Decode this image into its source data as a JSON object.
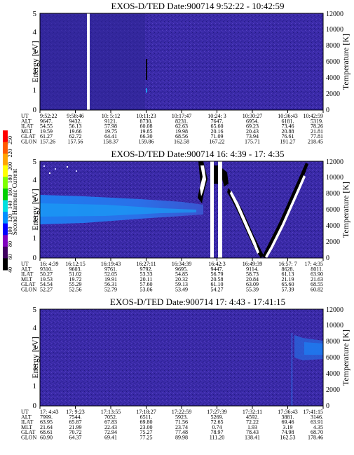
{
  "colors": {
    "background": "#3a2aa8",
    "speckle_dark": "#241a80",
    "speckle_light": "#5540c0",
    "enhancement": "#1e7cf0",
    "gap": "#ffffff"
  },
  "colorbar": {
    "label": "Second Harmonic Current",
    "ticks": [
      "250",
      "220",
      "200",
      "180",
      "160",
      "140",
      "120",
      "100",
      "80",
      "60",
      "40"
    ],
    "colors": [
      "#ff0000",
      "#ff5a00",
      "#ffa500",
      "#ffff00",
      "#7fff00",
      "#00d000",
      "#00e0e0",
      "#0090ff",
      "#0000ff",
      "#8000c0",
      "#400060",
      "#000000"
    ]
  },
  "chart_data": [
    {
      "type": "heatmap",
      "title": "EXOS-D/TED   Date:900714   9:52:22 - 10:42:59",
      "ylabel": "Energy [eV]",
      "y2label": "Temperature [K]",
      "ylim": [
        0,
        5
      ],
      "y2lim": [
        0,
        12000
      ],
      "yticks": [
        "0",
        "1",
        "2",
        "3",
        "4",
        "5"
      ],
      "y2ticks": [
        "0",
        "2000",
        "4000",
        "6000",
        "8000",
        "10000",
        "12000"
      ],
      "orbit_rows": [
        "UT",
        "ALT",
        "ILAT",
        "MLT",
        "GLAT",
        "GLON"
      ],
      "orbit_cols": [
        [
          "9:52:22",
          "9647.",
          "54.55",
          "19.59",
          "61.27",
          "157.26"
        ],
        [
          "9:58:46",
          "9432.",
          "56.13",
          "19.66",
          "62.72",
          "157.56"
        ],
        [
          "10: 5:12",
          "9121.",
          "57.98",
          "19.75",
          "64.41",
          "158.37"
        ],
        [
          "10:11:23",
          "8730.",
          "60.08",
          "19.85",
          "66.30",
          "159.86"
        ],
        [
          "10:17:47",
          "8231.",
          "62.63",
          "19.98",
          "68.56",
          "162.58"
        ],
        [
          "10:24: 3",
          "7647.",
          "65.60",
          "20.16",
          "71.09",
          "167.22"
        ],
        [
          "10:30:27",
          "6954.",
          "69.23",
          "20.43",
          "73.94",
          "175.71"
        ],
        [
          "10:36:43",
          "6181.",
          "73.46",
          "20.88",
          "76.61",
          "191.27"
        ],
        [
          "10:42:59",
          "5319.",
          "78.26",
          "21.81",
          "77.81",
          "218.45"
        ]
      ]
    },
    {
      "type": "heatmap",
      "title": "EXOS-D/TED   Date:900714   16: 4:39 - 17: 4:35",
      "ylabel": "Energy [eV]",
      "y2label": "Temperature [K]",
      "ylim": [
        0,
        5
      ],
      "y2lim": [
        0,
        12000
      ],
      "yticks": [
        "0",
        "1",
        "2",
        "3",
        "4",
        "5"
      ],
      "y2ticks": [
        "0",
        "2000",
        "4000",
        "6000",
        "8000",
        "10000",
        "12000"
      ],
      "orbit_rows": [
        "UT",
        "ALT",
        "ILAT",
        "MLT",
        "GLAT",
        "GLON"
      ],
      "orbit_cols": [
        [
          "16: 4:39",
          "9310.",
          "50.27",
          "19.53",
          "54.54",
          "52.27"
        ],
        [
          "16:12:15",
          "9603.",
          "51.02",
          "19.72",
          "55.29",
          "52.56"
        ],
        [
          "16:19:43",
          "9761.",
          "52.05",
          "19.91",
          "56.31",
          "52.79"
        ],
        [
          "16:27:11",
          "9792.",
          "53.33",
          "20.11",
          "57.60",
          "53.06"
        ],
        [
          "16:34:39",
          "9695.",
          "54.85",
          "20.32",
          "59.13",
          "53.49"
        ],
        [
          "16:42:3",
          "9447.",
          "56.79",
          "20.58",
          "61.10",
          "54.27"
        ],
        [
          "16:49:39",
          "9114.",
          "58.73",
          "20.84",
          "63.09",
          "55.39"
        ],
        [
          "16:57: 7",
          "8628.",
          "61.13",
          "21.19",
          "65.60",
          "57.39"
        ],
        [
          "17: 4:35",
          "8011.",
          "63.90",
          "21.63",
          "68.55",
          "60.82"
        ]
      ]
    },
    {
      "type": "heatmap",
      "title": "EXOS-D/TED   Date:900714   17: 4:43 - 17:41:15",
      "ylabel": "Energy [eV]",
      "y2label": "Temperature [K]",
      "ylim": [
        0,
        5
      ],
      "y2lim": [
        0,
        12000
      ],
      "yticks": [
        "0",
        "1",
        "2",
        "3",
        "4",
        "5"
      ],
      "y2ticks": [
        "0",
        "2000",
        "4000",
        "6000",
        "8000",
        "10000",
        "12000"
      ],
      "orbit_rows": [
        "UT",
        "ALT",
        "ILAT",
        "MLT",
        "GLAT",
        "GLON"
      ],
      "orbit_cols": [
        [
          "17: 4:43",
          "7999.",
          "63.95",
          "21.64",
          "68.61",
          "60.90"
        ],
        [
          "17: 9:23",
          "7544.",
          "65.87",
          "21.99",
          "70.72",
          "64.37"
        ],
        [
          "17:13:55",
          "7052.",
          "67.83",
          "22.43",
          "72.94",
          "69.41"
        ],
        [
          "17:18:27",
          "6511.",
          "69.80",
          "23.00",
          "75.27",
          "77.25"
        ],
        [
          "17:22:59",
          "5923.",
          "71.56",
          "23.74",
          "77.48",
          "89.98"
        ],
        [
          "17:27:39",
          "5269.",
          "72.65",
          "0.74",
          "78.97",
          "111.20"
        ],
        [
          "17:32:11",
          "4592.",
          "72.22",
          "1.93",
          "78.43",
          "138.41"
        ],
        [
          "17:36:43",
          "3881.",
          "69.46",
          "3.19",
          "74.98",
          "162.53"
        ],
        [
          "17:41:15",
          "3146.",
          "63.91",
          "4.35",
          "68.70",
          "178.46"
        ]
      ]
    }
  ]
}
